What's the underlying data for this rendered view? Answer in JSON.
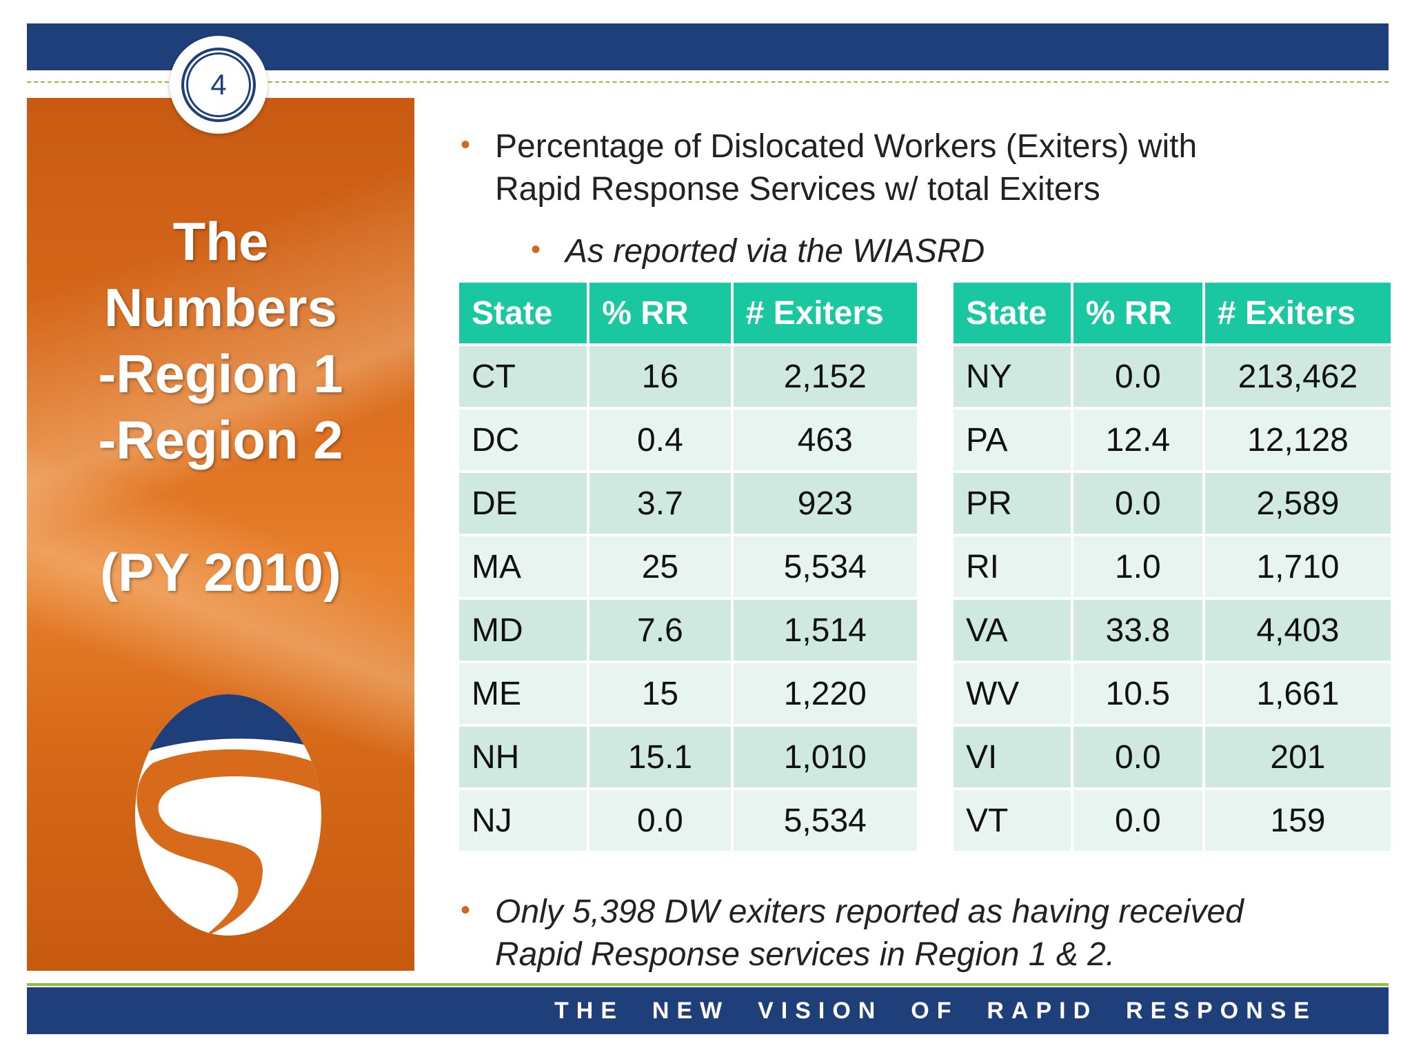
{
  "slide": {
    "number": "4"
  },
  "left_panel": {
    "title_lines": [
      "The",
      "Numbers",
      "-Region 1",
      "-Region 2"
    ],
    "year": "(PY 2010)"
  },
  "bullets": {
    "main_line1": "Percentage of Dislocated Workers (Exiters) with",
    "main_line2": "Rapid Response Services w/ total Exiters",
    "sub": "As reported via the WIASRD",
    "footer_line1": "Only 5,398 DW exiters reported as having received",
    "footer_line2": "Rapid Response services in Region 1 & 2."
  },
  "tables": {
    "headers": [
      "State",
      "% RR",
      "# Exiters"
    ],
    "left_rows": [
      [
        "CT",
        "16",
        "2,152"
      ],
      [
        "DC",
        "0.4",
        "463"
      ],
      [
        "DE",
        "3.7",
        "923"
      ],
      [
        "MA",
        "25",
        "5,534"
      ],
      [
        "MD",
        "7.6",
        "1,514"
      ],
      [
        "ME",
        "15",
        "1,220"
      ],
      [
        "NH",
        "15.1",
        "1,010"
      ],
      [
        "NJ",
        "0.0",
        "5,534"
      ]
    ],
    "right_rows": [
      [
        "NY",
        "0.0",
        "213,462"
      ],
      [
        "PA",
        "12.4",
        "12,128"
      ],
      [
        "PR",
        "0.0",
        "2,589"
      ],
      [
        "RI",
        "1.0",
        "1,710"
      ],
      [
        "VA",
        "33.8",
        "4,403"
      ],
      [
        "WV",
        "10.5",
        "1,661"
      ],
      [
        "VI",
        "0.0",
        "201"
      ],
      [
        "VT",
        "0.0",
        "159"
      ]
    ]
  },
  "footer": {
    "tagline": "THE  NEW  VISION  OF  RAPID  RESPONSE"
  },
  "colors": {
    "navy": "#1f3f7a",
    "orange": "#d86a1c",
    "teal_header": "#19c7a0",
    "row_dark": "#cfe8e0",
    "row_light": "#e7f4f0",
    "green_line": "#8cbf3f"
  }
}
